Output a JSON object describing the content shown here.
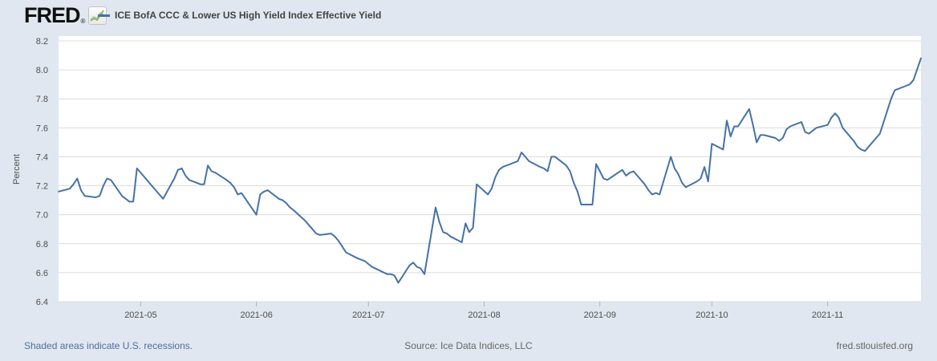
{
  "header": {
    "logo_text": "FRED",
    "registered_mark": "®",
    "title": "ICE BofA CCC & Lower US High Yield Index Effective Yield"
  },
  "footer": {
    "left": "Shaded areas indicate U.S. recessions.",
    "center": "Source: Ice Data Indices, LLC",
    "right": "fred.stlouisfed.org"
  },
  "colors": {
    "background": "#e1e7f0",
    "plot_background": "#ffffff",
    "gridline": "#dcdcdc",
    "line": "#4572a7",
    "axis_text": "#4d4d4d",
    "tick_mark": "#aab4c0",
    "logo_icon_green": "#7fb13f",
    "logo_icon_gray": "#a7b6c4"
  },
  "chart_data": {
    "type": "line",
    "title": "ICE BofA CCC & Lower US High Yield Index Effective Yield",
    "xlabel": "",
    "ylabel": "Percent",
    "ylim": [
      6.4,
      8.2
    ],
    "y_ticks": [
      6.4,
      6.6,
      6.8,
      7.0,
      7.2,
      7.4,
      7.6,
      7.8,
      8.0,
      8.2
    ],
    "x_range": [
      "2021-04-09",
      "2021-11-26"
    ],
    "x_ticks": [
      {
        "date": "2021-05-01",
        "label": "2021-05"
      },
      {
        "date": "2021-06-01",
        "label": "2021-06"
      },
      {
        "date": "2021-07-01",
        "label": "2021-07"
      },
      {
        "date": "2021-08-01",
        "label": "2021-08"
      },
      {
        "date": "2021-09-01",
        "label": "2021-09"
      },
      {
        "date": "2021-10-01",
        "label": "2021-10"
      },
      {
        "date": "2021-11-01",
        "label": "2021-11"
      }
    ],
    "grid": "horizontal",
    "legend_position": "top-left",
    "series": [
      {
        "name": "ICE BofA CCC & Lower US High Yield Index Effective Yield",
        "color": "#4572a7",
        "points": [
          [
            "2021-04-09",
            7.16
          ],
          [
            "2021-04-12",
            7.18
          ],
          [
            "2021-04-13",
            7.21
          ],
          [
            "2021-04-14",
            7.25
          ],
          [
            "2021-04-15",
            7.17
          ],
          [
            "2021-04-16",
            7.13
          ],
          [
            "2021-04-19",
            7.12
          ],
          [
            "2021-04-20",
            7.13
          ],
          [
            "2021-04-21",
            7.2
          ],
          [
            "2021-04-22",
            7.25
          ],
          [
            "2021-04-23",
            7.24
          ],
          [
            "2021-04-26",
            7.13
          ],
          [
            "2021-04-27",
            7.11
          ],
          [
            "2021-04-28",
            7.09
          ],
          [
            "2021-04-29",
            7.09
          ],
          [
            "2021-04-30",
            7.32
          ],
          [
            "2021-05-03",
            7.23
          ],
          [
            "2021-05-04",
            7.2
          ],
          [
            "2021-05-05",
            7.17
          ],
          [
            "2021-05-06",
            7.14
          ],
          [
            "2021-05-07",
            7.11
          ],
          [
            "2021-05-10",
            7.25
          ],
          [
            "2021-05-11",
            7.31
          ],
          [
            "2021-05-12",
            7.32
          ],
          [
            "2021-05-13",
            7.27
          ],
          [
            "2021-05-14",
            7.24
          ],
          [
            "2021-05-17",
            7.21
          ],
          [
            "2021-05-18",
            7.21
          ],
          [
            "2021-05-19",
            7.34
          ],
          [
            "2021-05-20",
            7.3
          ],
          [
            "2021-05-21",
            7.29
          ],
          [
            "2021-05-24",
            7.24
          ],
          [
            "2021-05-25",
            7.22
          ],
          [
            "2021-05-26",
            7.19
          ],
          [
            "2021-05-27",
            7.14
          ],
          [
            "2021-05-28",
            7.15
          ],
          [
            "2021-06-01",
            7.0
          ],
          [
            "2021-06-02",
            7.14
          ],
          [
            "2021-06-03",
            7.16
          ],
          [
            "2021-06-04",
            7.17
          ],
          [
            "2021-06-07",
            7.11
          ],
          [
            "2021-06-08",
            7.1
          ],
          [
            "2021-06-09",
            7.08
          ],
          [
            "2021-06-10",
            7.05
          ],
          [
            "2021-06-11",
            7.03
          ],
          [
            "2021-06-14",
            6.96
          ],
          [
            "2021-06-15",
            6.93
          ],
          [
            "2021-06-16",
            6.9
          ],
          [
            "2021-06-17",
            6.87
          ],
          [
            "2021-06-18",
            6.86
          ],
          [
            "2021-06-21",
            6.87
          ],
          [
            "2021-06-22",
            6.85
          ],
          [
            "2021-06-23",
            6.82
          ],
          [
            "2021-06-24",
            6.78
          ],
          [
            "2021-06-25",
            6.74
          ],
          [
            "2021-06-28",
            6.7
          ],
          [
            "2021-06-29",
            6.69
          ],
          [
            "2021-06-30",
            6.68
          ],
          [
            "2021-07-01",
            6.66
          ],
          [
            "2021-07-02",
            6.64
          ],
          [
            "2021-07-06",
            6.59
          ],
          [
            "2021-07-07",
            6.59
          ],
          [
            "2021-07-08",
            6.58
          ],
          [
            "2021-07-09",
            6.53
          ],
          [
            "2021-07-12",
            6.65
          ],
          [
            "2021-07-13",
            6.67
          ],
          [
            "2021-07-14",
            6.64
          ],
          [
            "2021-07-15",
            6.63
          ],
          [
            "2021-07-16",
            6.59
          ],
          [
            "2021-07-19",
            7.05
          ],
          [
            "2021-07-20",
            6.95
          ],
          [
            "2021-07-21",
            6.88
          ],
          [
            "2021-07-22",
            6.87
          ],
          [
            "2021-07-23",
            6.85
          ],
          [
            "2021-07-26",
            6.81
          ],
          [
            "2021-07-27",
            6.94
          ],
          [
            "2021-07-28",
            6.88
          ],
          [
            "2021-07-29",
            6.91
          ],
          [
            "2021-07-30",
            7.21
          ],
          [
            "2021-08-02",
            7.14
          ],
          [
            "2021-08-03",
            7.18
          ],
          [
            "2021-08-04",
            7.26
          ],
          [
            "2021-08-05",
            7.31
          ],
          [
            "2021-08-06",
            7.33
          ],
          [
            "2021-08-09",
            7.36
          ],
          [
            "2021-08-10",
            7.37
          ],
          [
            "2021-08-11",
            7.43
          ],
          [
            "2021-08-12",
            7.4
          ],
          [
            "2021-08-13",
            7.37
          ],
          [
            "2021-08-16",
            7.33
          ],
          [
            "2021-08-17",
            7.32
          ],
          [
            "2021-08-18",
            7.3
          ],
          [
            "2021-08-19",
            7.4
          ],
          [
            "2021-08-20",
            7.4
          ],
          [
            "2021-08-23",
            7.34
          ],
          [
            "2021-08-24",
            7.3
          ],
          [
            "2021-08-25",
            7.22
          ],
          [
            "2021-08-26",
            7.16
          ],
          [
            "2021-08-27",
            7.07
          ],
          [
            "2021-08-30",
            7.07
          ],
          [
            "2021-08-31",
            7.35
          ],
          [
            "2021-09-01",
            7.3
          ],
          [
            "2021-09-02",
            7.25
          ],
          [
            "2021-09-03",
            7.24
          ],
          [
            "2021-09-07",
            7.31
          ],
          [
            "2021-09-08",
            7.27
          ],
          [
            "2021-09-09",
            7.29
          ],
          [
            "2021-09-10",
            7.3
          ],
          [
            "2021-09-13",
            7.21
          ],
          [
            "2021-09-14",
            7.17
          ],
          [
            "2021-09-15",
            7.14
          ],
          [
            "2021-09-16",
            7.15
          ],
          [
            "2021-09-17",
            7.14
          ],
          [
            "2021-09-20",
            7.4
          ],
          [
            "2021-09-21",
            7.32
          ],
          [
            "2021-09-22",
            7.28
          ],
          [
            "2021-09-23",
            7.22
          ],
          [
            "2021-09-24",
            7.19
          ],
          [
            "2021-09-27",
            7.23
          ],
          [
            "2021-09-28",
            7.25
          ],
          [
            "2021-09-29",
            7.33
          ],
          [
            "2021-09-30",
            7.23
          ],
          [
            "2021-10-01",
            7.49
          ],
          [
            "2021-10-04",
            7.45
          ],
          [
            "2021-10-05",
            7.65
          ],
          [
            "2021-10-06",
            7.54
          ],
          [
            "2021-10-07",
            7.61
          ],
          [
            "2021-10-08",
            7.61
          ],
          [
            "2021-10-11",
            7.73
          ],
          [
            "2021-10-12",
            7.62
          ],
          [
            "2021-10-13",
            7.5
          ],
          [
            "2021-10-14",
            7.55
          ],
          [
            "2021-10-15",
            7.55
          ],
          [
            "2021-10-18",
            7.53
          ],
          [
            "2021-10-19",
            7.51
          ],
          [
            "2021-10-20",
            7.53
          ],
          [
            "2021-10-21",
            7.59
          ],
          [
            "2021-10-22",
            7.61
          ],
          [
            "2021-10-25",
            7.64
          ],
          [
            "2021-10-26",
            7.57
          ],
          [
            "2021-10-27",
            7.56
          ],
          [
            "2021-10-28",
            7.58
          ],
          [
            "2021-10-29",
            7.6
          ],
          [
            "2021-11-01",
            7.62
          ],
          [
            "2021-11-02",
            7.67
          ],
          [
            "2021-11-03",
            7.7
          ],
          [
            "2021-11-04",
            7.67
          ],
          [
            "2021-11-05",
            7.6
          ],
          [
            "2021-11-08",
            7.51
          ],
          [
            "2021-11-09",
            7.47
          ],
          [
            "2021-11-10",
            7.45
          ],
          [
            "2021-11-11",
            7.44
          ],
          [
            "2021-11-12",
            7.47
          ],
          [
            "2021-11-15",
            7.56
          ],
          [
            "2021-11-16",
            7.64
          ],
          [
            "2021-11-17",
            7.72
          ],
          [
            "2021-11-18",
            7.8
          ],
          [
            "2021-11-19",
            7.86
          ],
          [
            "2021-11-22",
            7.89
          ],
          [
            "2021-11-23",
            7.9
          ],
          [
            "2021-11-24",
            7.93
          ],
          [
            "2021-11-26",
            8.08
          ]
        ]
      }
    ]
  }
}
